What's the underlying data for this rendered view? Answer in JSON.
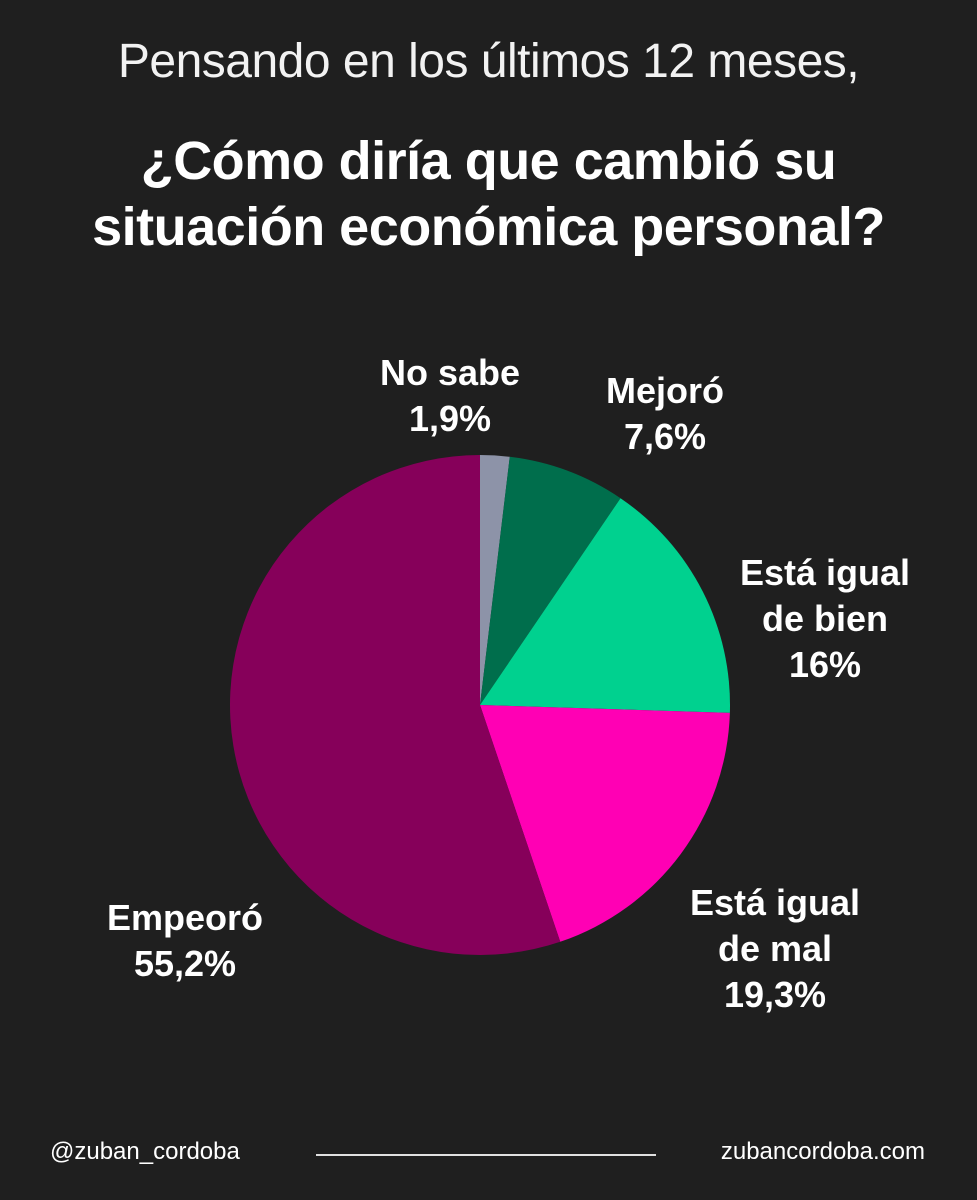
{
  "header": {
    "subtitle": "Pensando en los últimos 12 meses,",
    "title_line1": "¿Cómo diría que cambió su",
    "title_line2": "situación económica personal?"
  },
  "chart_data": {
    "type": "pie",
    "title": "¿Cómo diría que cambió su situación económica personal?",
    "start": "12 o'clock",
    "direction": "clockwise",
    "slices": [
      {
        "name": "No sabe",
        "value": 1.9,
        "label_lines": [
          "No sabe",
          "1,9%"
        ],
        "color": "#8d93a8"
      },
      {
        "name": "Mejoró",
        "value": 7.6,
        "label_lines": [
          "Mejoró",
          "7,6%"
        ],
        "color": "#006e4c"
      },
      {
        "name": "Está igual de bien",
        "value": 16,
        "label_lines": [
          "Está igual",
          "de bien",
          "16%"
        ],
        "color": "#00d18f"
      },
      {
        "name": "Está igual de mal",
        "value": 19.3,
        "label_lines": [
          "Está igual",
          "de mal",
          "19,3%"
        ],
        "color": "#ff00b4"
      },
      {
        "name": "Empeoró",
        "value": 55.2,
        "label_lines": [
          "Empeoró",
          "55,2%"
        ],
        "color": "#86005a"
      }
    ]
  },
  "footer": {
    "handle": "@zuban_cordoba",
    "website": "zubancordoba.com"
  }
}
